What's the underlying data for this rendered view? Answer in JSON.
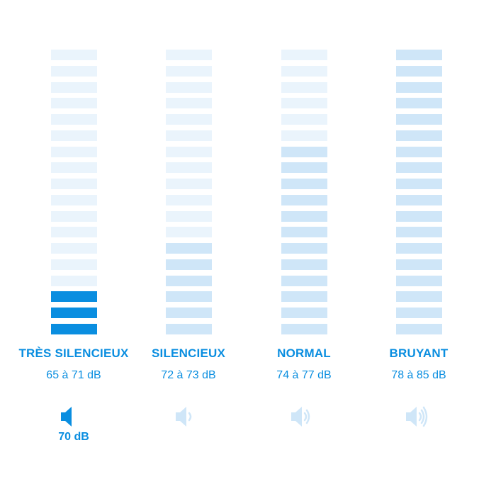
{
  "segments_per_meter": 18,
  "colors": {
    "active": "#0a8ee0",
    "highlight": "#cfe6f8",
    "inactive": "#eaf4fc",
    "speaker_faded": "#cfe6f8"
  },
  "categories": [
    {
      "label": "TRÈS SILENCIEUX",
      "range": "65 à 71 dB",
      "active_segments": 3,
      "highlight_segments": 0,
      "icon": "speaker-0-waves-icon",
      "current_value": "70 dB",
      "selected": true
    },
    {
      "label": "SILENCIEUX",
      "range": "72 à 73 dB",
      "active_segments": 0,
      "highlight_segments": 6,
      "icon": "speaker-1-wave-icon",
      "current_value": "",
      "selected": false
    },
    {
      "label": "NORMAL",
      "range": "74 à 77 dB",
      "active_segments": 0,
      "highlight_segments": 12,
      "icon": "speaker-2-waves-icon",
      "current_value": "",
      "selected": false
    },
    {
      "label": "BRUYANT",
      "range": "78 à 85 dB",
      "active_segments": 0,
      "highlight_segments": 18,
      "icon": "speaker-3-waves-icon",
      "current_value": "",
      "selected": false
    }
  ]
}
